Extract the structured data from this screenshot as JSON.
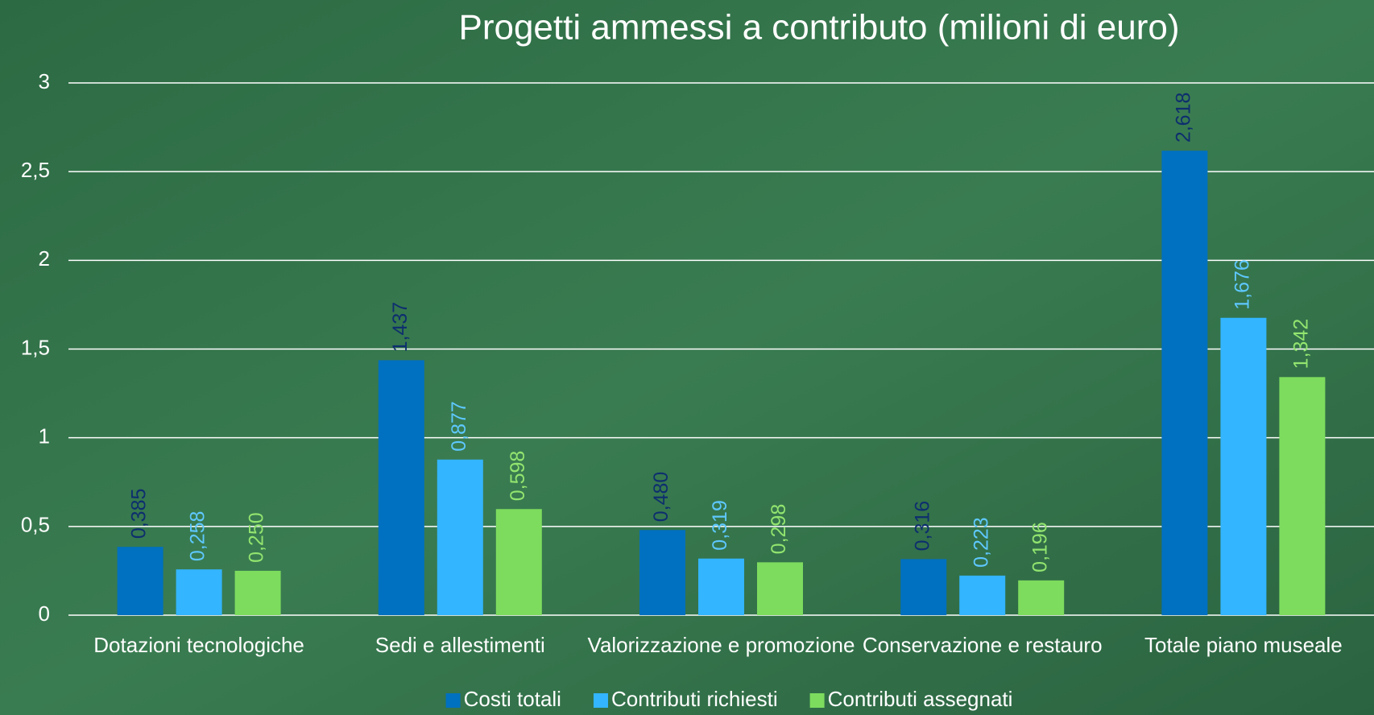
{
  "chart_data": {
    "type": "bar",
    "title": "Progetti ammessi a contributo (milioni di euro)",
    "categories": [
      "Dotazioni tecnologiche",
      "Sedi e allestimenti",
      "Valorizzazione e promozione",
      "Conservazione e restauro",
      "Totale piano museale"
    ],
    "series": [
      {
        "name": "Costi totali",
        "color": "#0070c0",
        "label_color": "#0d2e6e",
        "values": [
          0.385,
          1.437,
          0.48,
          0.316,
          2.618
        ],
        "value_labels": [
          "0,385",
          "1,437",
          "0,480",
          "0,316",
          "2,618"
        ]
      },
      {
        "name": "Contributi richiesti",
        "color": "#33b5ff",
        "label_color": "#5ec8ff",
        "values": [
          0.258,
          0.877,
          0.319,
          0.223,
          1.676
        ],
        "value_labels": [
          "0,258",
          "0,877",
          "0,319",
          "0,223",
          "1,676"
        ]
      },
      {
        "name": "Contributi assegnati",
        "color": "#7ddc5e",
        "label_color": "#92e56f",
        "values": [
          0.25,
          0.598,
          0.298,
          0.196,
          1.342
        ],
        "value_labels": [
          "0,250",
          "0,598",
          "0,298",
          "0,196",
          "1,342"
        ]
      }
    ],
    "ylim": [
      0,
      3
    ],
    "yticks": [
      0,
      {
        "value": 0.5,
        "label": "0,5"
      },
      1,
      {
        "value": 1.5,
        "label": "1,5"
      },
      2,
      {
        "value": 2.5,
        "label": "2,5"
      },
      3
    ],
    "grid": true,
    "legend": "bottom"
  }
}
